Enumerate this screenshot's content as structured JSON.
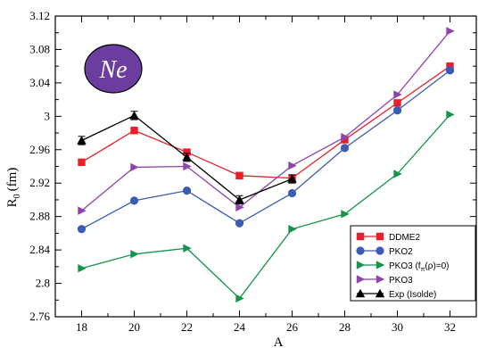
{
  "chart_data": {
    "type": "line",
    "title": "",
    "xlabel": "A",
    "ylabel": "R_0 (fm)",
    "ylabel_main": "R",
    "ylabel_sub": "0",
    "ylabel_unit": "(fm)",
    "xlim": [
      17,
      33
    ],
    "ylim": [
      2.76,
      3.12
    ],
    "xticks": [
      18,
      20,
      22,
      24,
      26,
      28,
      30,
      32
    ],
    "yticks": [
      2.76,
      2.8,
      2.84,
      2.88,
      2.92,
      2.96,
      3.0,
      3.04,
      3.08,
      3.12
    ],
    "ytick_labels": [
      "2.76",
      "2.8",
      "2.84",
      "2.88",
      "2.92",
      "2.96",
      "3",
      "3.04",
      "3.08",
      "3.12"
    ],
    "grid": false,
    "legend_position": "bottom-right",
    "annotation": "Ne",
    "series": [
      {
        "name": "DDME2",
        "color": "#e8202a",
        "marker": "square",
        "x": [
          18,
          20,
          22,
          24,
          26,
          28,
          30,
          32
        ],
        "y": [
          2.945,
          2.983,
          2.957,
          2.929,
          2.926,
          2.972,
          3.016,
          3.06
        ]
      },
      {
        "name": "PKO2",
        "color": "#3b5bb5",
        "marker": "circle",
        "x": [
          18,
          20,
          22,
          24,
          26,
          28,
          30,
          32
        ],
        "y": [
          2.865,
          2.899,
          2.911,
          2.872,
          2.908,
          2.962,
          3.007,
          3.055
        ]
      },
      {
        "name": "PKO3 (f_π(ρ)=0)",
        "name_parts": [
          "PKO3 (f",
          "π",
          "(ρ)=0)"
        ],
        "color": "#15944a",
        "marker": "triangle-right",
        "x": [
          18,
          20,
          22,
          24,
          26,
          28,
          30,
          32
        ],
        "y": [
          2.818,
          2.835,
          2.842,
          2.782,
          2.865,
          2.883,
          2.931,
          3.002
        ]
      },
      {
        "name": "PKO3",
        "color": "#8e44ad",
        "marker": "triangle-right",
        "x": [
          18,
          20,
          22,
          24,
          26,
          28,
          30,
          32
        ],
        "y": [
          2.887,
          2.939,
          2.94,
          2.891,
          2.941,
          2.975,
          3.026,
          3.102
        ]
      },
      {
        "name": "Exp (Isolde)",
        "color": "#000000",
        "marker": "triangle-up",
        "x": [
          18,
          20,
          22,
          24,
          26
        ],
        "y": [
          2.971,
          3.001,
          2.951,
          2.9,
          2.925
        ],
        "yerr": [
          0.005,
          0.005,
          0.005,
          0.005,
          0.005
        ]
      }
    ]
  },
  "colors": {
    "badge_fill": "#6a3d9e",
    "badge_stroke": "#000000"
  }
}
